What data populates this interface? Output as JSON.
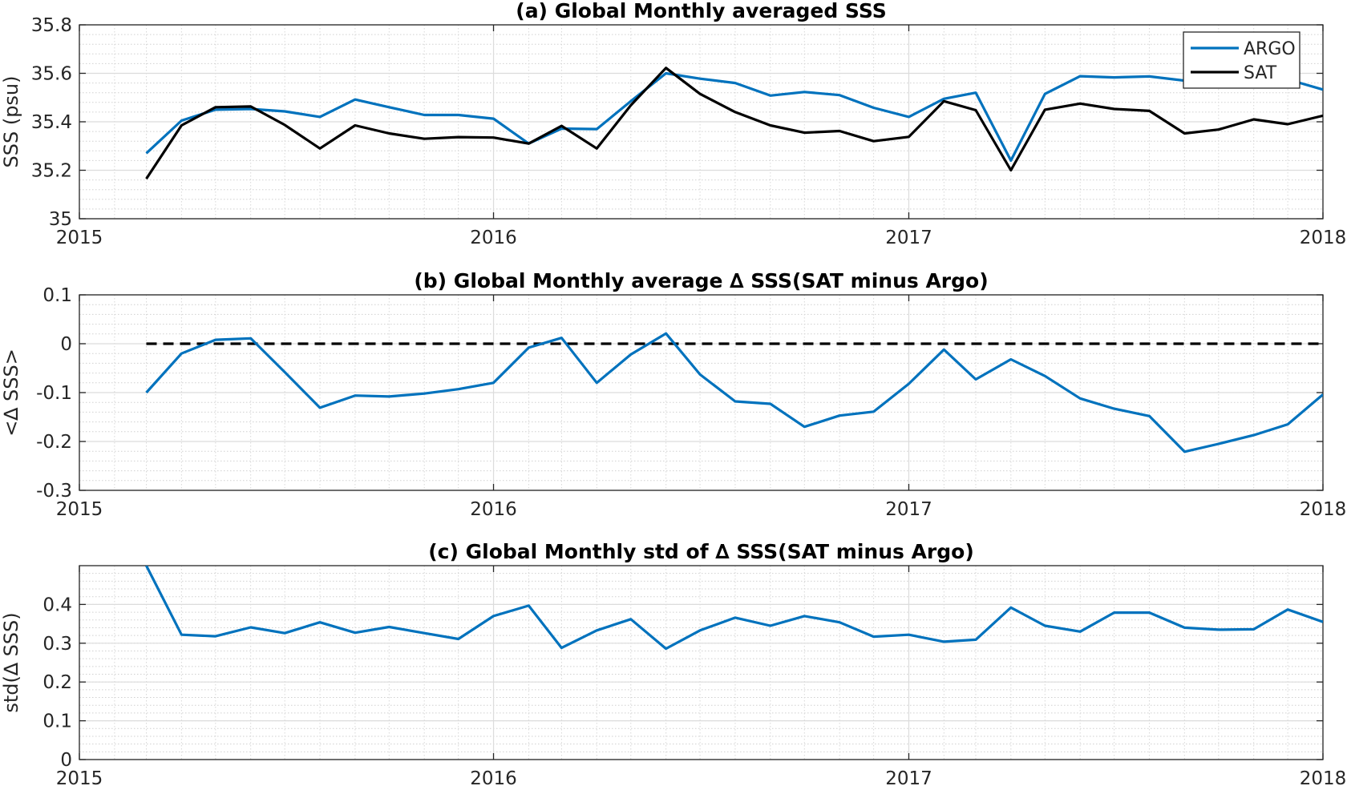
{
  "chart_data": [
    {
      "type": "line",
      "title": "(a) Global Monthly averaged SSS",
      "ylabel": "SSS (psu)",
      "xlabel": "",
      "xlim": [
        "2015-01-01",
        "2018-01-01"
      ],
      "ylim": [
        35,
        35.8
      ],
      "xticks": [
        "2015",
        "2016",
        "2017",
        "2018"
      ],
      "yticks": [
        "35",
        "35.2",
        "35.4",
        "35.6",
        "35.8"
      ],
      "grid": true,
      "minor_grid": true,
      "legend": "top-right",
      "x": [
        "2015-03-01",
        "2015-04-01",
        "2015-05-01",
        "2015-06-01",
        "2015-07-01",
        "2015-08-01",
        "2015-09-01",
        "2015-10-01",
        "2015-11-01",
        "2015-12-01",
        "2016-01-01",
        "2016-02-01",
        "2016-03-01",
        "2016-04-01",
        "2016-05-01",
        "2016-06-01",
        "2016-07-01",
        "2016-08-01",
        "2016-09-01",
        "2016-10-01",
        "2016-11-01",
        "2016-12-01",
        "2017-01-01",
        "2017-02-01",
        "2017-03-01",
        "2017-04-01",
        "2017-05-01",
        "2017-06-01",
        "2017-07-01",
        "2017-08-01",
        "2017-09-01",
        "2017-10-01",
        "2017-11-01",
        "2017-12-01",
        "2018-01-01"
      ],
      "series": [
        {
          "name": "ARGO",
          "color": "#0072BD",
          "values": [
            35.27,
            35.405,
            35.45,
            35.453,
            35.443,
            35.42,
            35.492,
            35.46,
            35.428,
            35.428,
            35.413,
            35.31,
            35.372,
            35.37,
            35.485,
            35.6,
            35.578,
            35.56,
            35.508,
            35.523,
            35.51,
            35.458,
            35.42,
            35.495,
            35.52,
            35.24,
            35.515,
            35.588,
            35.583,
            35.587,
            35.57,
            35.575,
            35.578,
            35.575,
            35.533
          ]
        },
        {
          "name": "SAT",
          "color": "#000000",
          "values": [
            35.165,
            35.385,
            35.46,
            35.463,
            35.387,
            35.29,
            35.385,
            35.352,
            35.33,
            35.337,
            35.335,
            35.31,
            35.383,
            35.29,
            35.468,
            35.622,
            35.515,
            35.44,
            35.385,
            35.355,
            35.362,
            35.32,
            35.338,
            35.485,
            35.448,
            35.2,
            35.45,
            35.475,
            35.453,
            35.445,
            35.352,
            35.368,
            35.41,
            35.39,
            35.425
          ]
        }
      ]
    },
    {
      "type": "line",
      "title": "(b) Global Monthly average ∆ SSS(SAT minus Argo)",
      "ylabel": "<∆ SSS>",
      "xlabel": "",
      "xlim": [
        "2015-01-01",
        "2018-01-01"
      ],
      "ylim": [
        -0.3,
        0.1
      ],
      "xticks": [
        "2015",
        "2016",
        "2017",
        "2018"
      ],
      "yticks": [
        "-0.3",
        "-0.2",
        "-0.1",
        "0",
        "0.1"
      ],
      "grid": true,
      "minor_grid": true,
      "reference_line": {
        "y": 0,
        "style": "dashed",
        "color": "#000000",
        "x_from": "2015-03-01",
        "x_to": "2018-01-01"
      },
      "x": [
        "2015-03-01",
        "2015-04-01",
        "2015-05-01",
        "2015-06-01",
        "2015-07-01",
        "2015-08-01",
        "2015-09-01",
        "2015-10-01",
        "2015-11-01",
        "2015-12-01",
        "2016-01-01",
        "2016-02-01",
        "2016-03-01",
        "2016-04-01",
        "2016-05-01",
        "2016-06-01",
        "2016-07-01",
        "2016-08-01",
        "2016-09-01",
        "2016-10-01",
        "2016-11-01",
        "2016-12-01",
        "2017-01-01",
        "2017-02-01",
        "2017-03-01",
        "2017-04-01",
        "2017-05-01",
        "2017-06-01",
        "2017-07-01",
        "2017-08-01",
        "2017-09-01",
        "2017-10-01",
        "2017-11-01",
        "2017-12-01",
        "2018-01-01"
      ],
      "series": [
        {
          "color": "#0072BD",
          "values": [
            -0.1,
            -0.02,
            0.008,
            0.011,
            -0.058,
            -0.131,
            -0.106,
            -0.108,
            -0.102,
            -0.093,
            -0.08,
            -0.008,
            0.012,
            -0.08,
            -0.022,
            0.021,
            -0.063,
            -0.118,
            -0.123,
            -0.17,
            -0.147,
            -0.139,
            -0.082,
            -0.012,
            -0.073,
            -0.032,
            -0.066,
            -0.112,
            -0.133,
            -0.148,
            -0.221,
            -0.205,
            -0.187,
            -0.165,
            -0.104
          ]
        }
      ]
    },
    {
      "type": "line",
      "title": "(c) Global Monthly std of ∆ SSS(SAT minus Argo)",
      "ylabel": "std(∆ SSS)",
      "xlabel": "",
      "xlim": [
        "2015-01-01",
        "2018-01-01"
      ],
      "ylim": [
        0,
        0.5
      ],
      "xticks": [
        "2015",
        "2016",
        "2017",
        "2018"
      ],
      "yticks": [
        "0",
        "0.1",
        "0.2",
        "0.3",
        "0.4"
      ],
      "grid": true,
      "minor_grid": true,
      "x": [
        "2015-03-01",
        "2015-04-01",
        "2015-05-01",
        "2015-06-01",
        "2015-07-01",
        "2015-08-01",
        "2015-09-01",
        "2015-10-01",
        "2015-11-01",
        "2015-12-01",
        "2016-01-01",
        "2016-02-01",
        "2016-03-01",
        "2016-04-01",
        "2016-05-01",
        "2016-06-01",
        "2016-07-01",
        "2016-08-01",
        "2016-09-01",
        "2016-10-01",
        "2016-11-01",
        "2016-12-01",
        "2017-01-01",
        "2017-02-01",
        "2017-03-01",
        "2017-04-01",
        "2017-05-01",
        "2017-06-01",
        "2017-07-01",
        "2017-08-01",
        "2017-09-01",
        "2017-10-01",
        "2017-11-01",
        "2017-12-01",
        "2018-01-01"
      ],
      "series": [
        {
          "color": "#0072BD",
          "values": [
            0.5,
            0.322,
            0.318,
            0.341,
            0.326,
            0.354,
            0.327,
            0.342,
            0.326,
            0.311,
            0.37,
            0.397,
            0.288,
            0.333,
            0.362,
            0.286,
            0.333,
            0.366,
            0.345,
            0.37,
            0.354,
            0.317,
            0.322,
            0.304,
            0.309,
            0.392,
            0.345,
            0.33,
            0.379,
            0.379,
            0.34,
            0.335,
            0.336,
            0.387,
            0.355
          ]
        }
      ]
    }
  ]
}
